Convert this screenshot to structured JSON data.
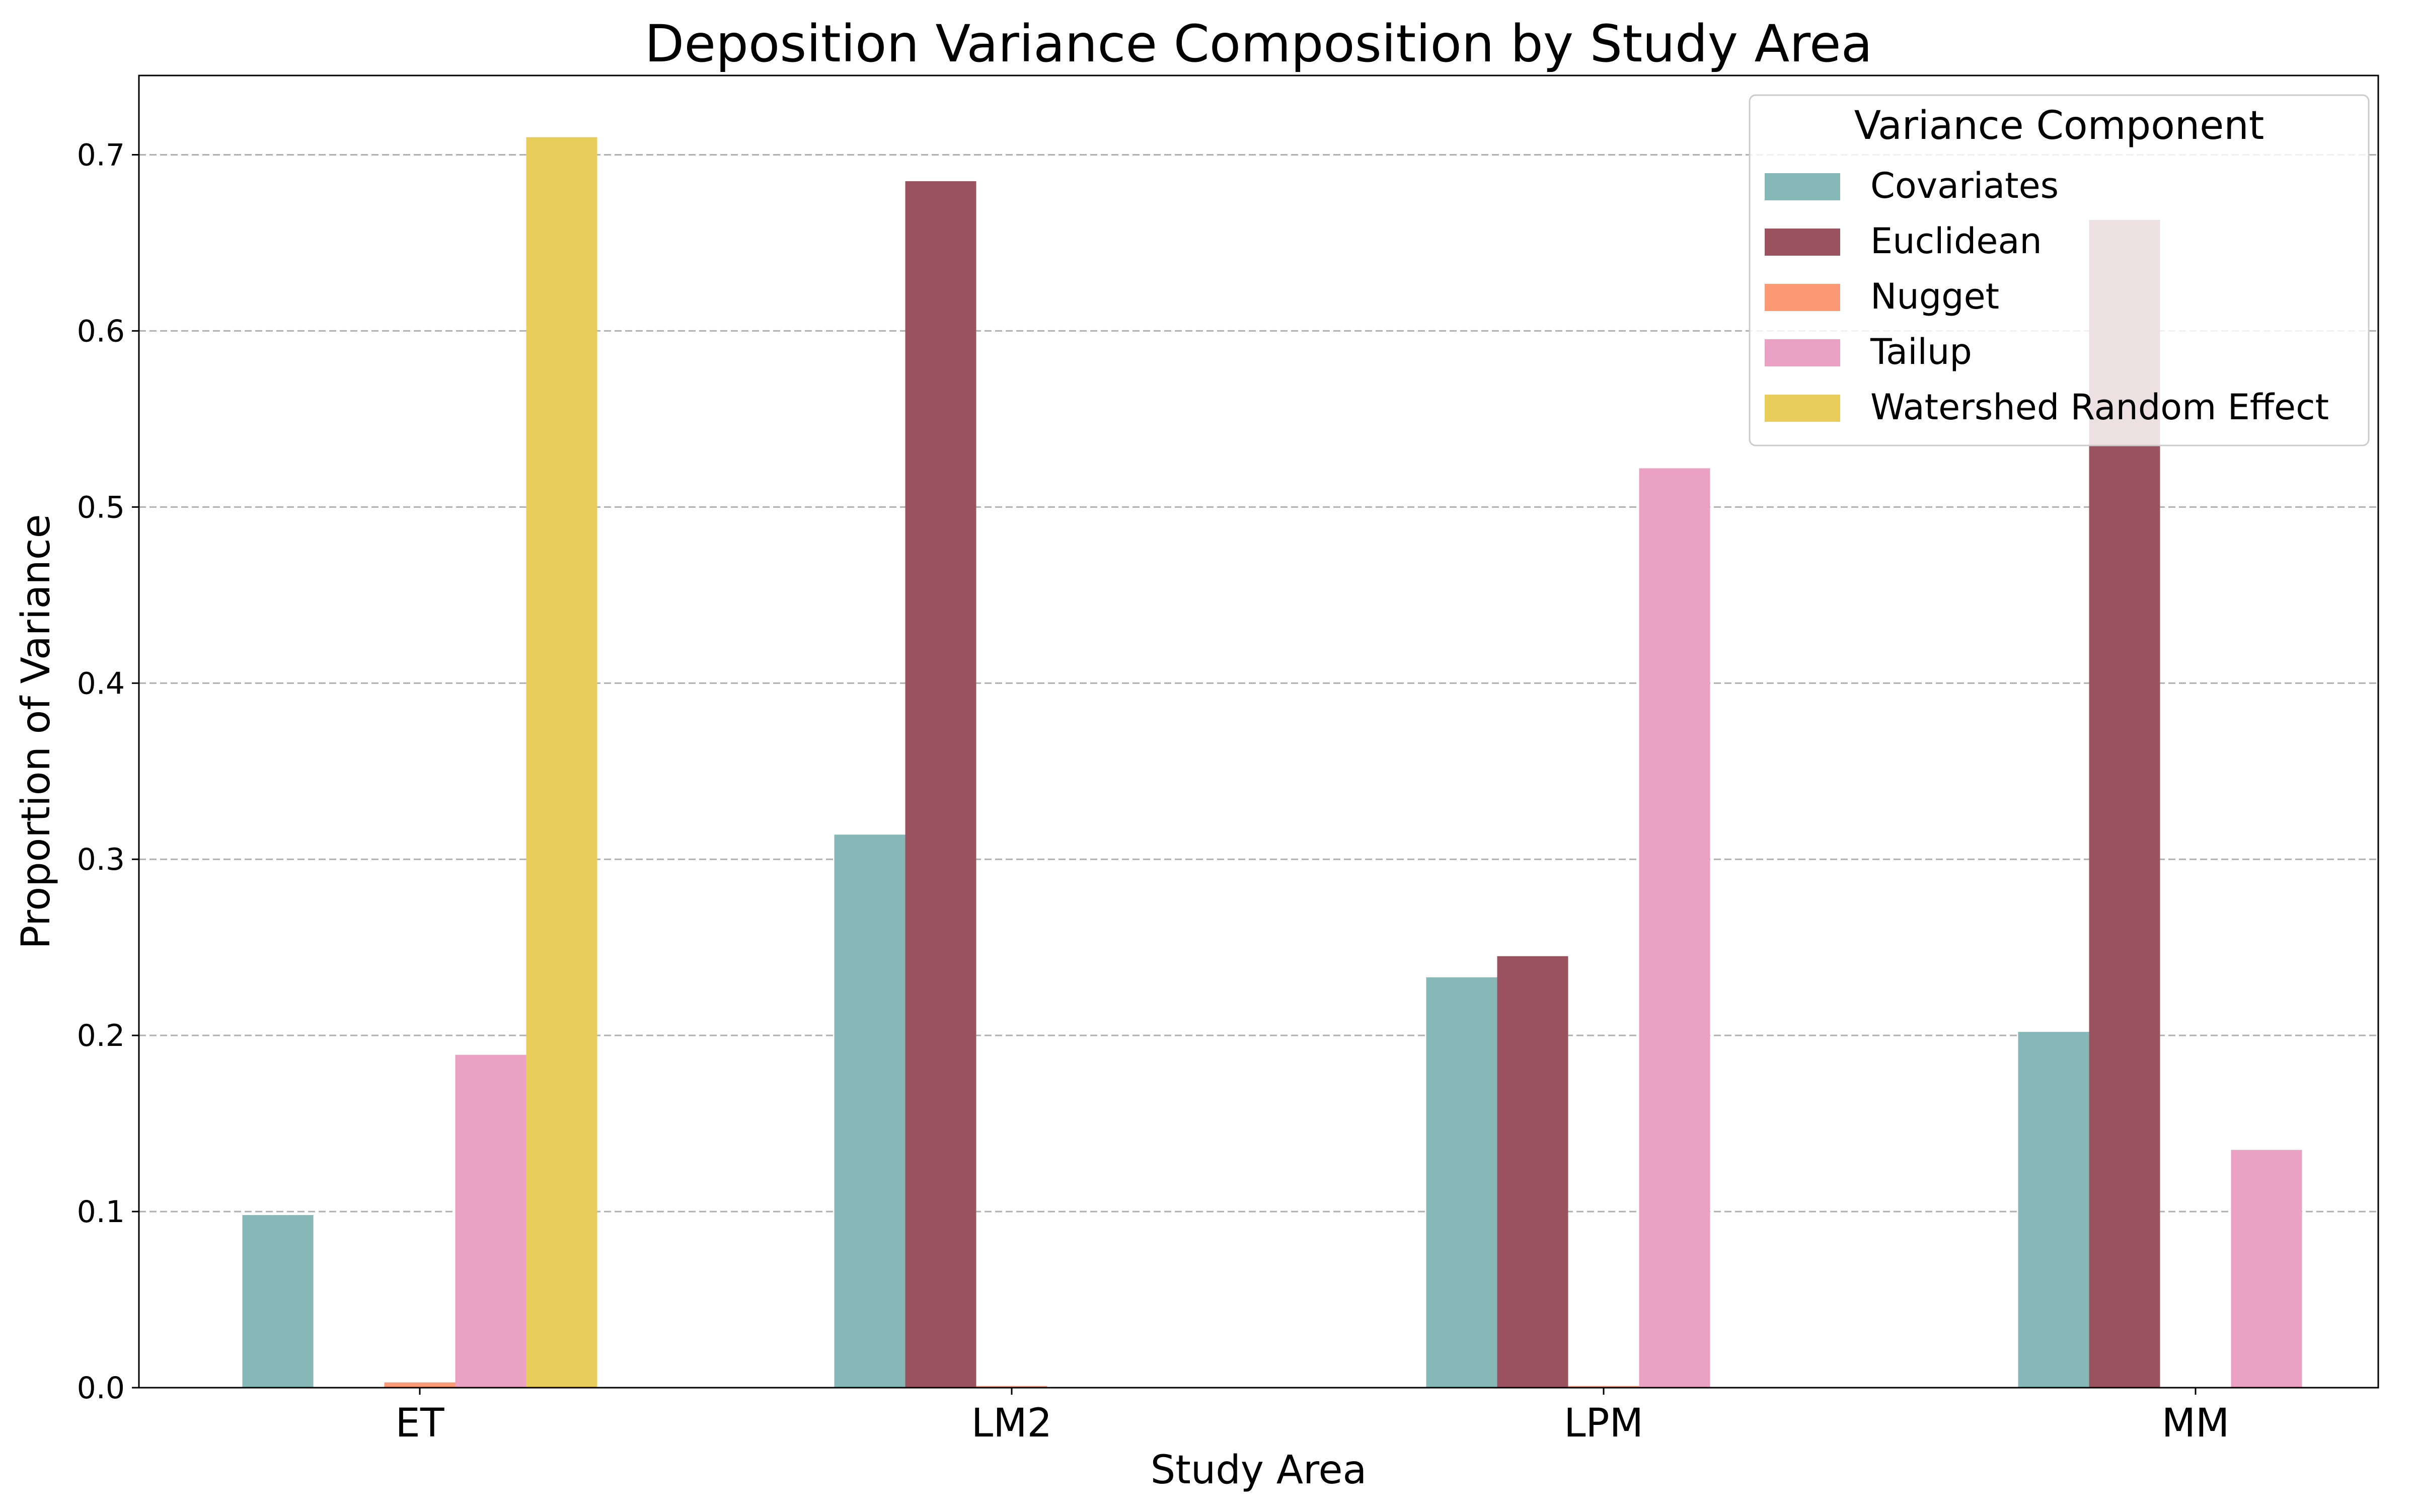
{
  "chart_data": {
    "type": "bar",
    "title": "Deposition Variance Composition by Study Area",
    "xlabel": "Study Area",
    "ylabel": "Proportion of Variance",
    "categories": [
      "ET",
      "LM2",
      "LPM",
      "MM"
    ],
    "series": [
      {
        "name": "Covariates",
        "color": "#86b8b8",
        "values": [
          0.098,
          0.314,
          0.233,
          0.202
        ]
      },
      {
        "name": "Euclidean",
        "color": "#9b545f",
        "values": [
          0.0,
          0.685,
          0.245,
          0.663
        ]
      },
      {
        "name": "Nugget",
        "color": "#fb9a75",
        "values": [
          0.003,
          0.001,
          0.001,
          0.0
        ]
      },
      {
        "name": "Tailup",
        "color": "#eaa1c4",
        "values": [
          0.189,
          0.0,
          0.522,
          0.135
        ]
      },
      {
        "name": "Watershed Random Effect",
        "color": "#e8cd5a",
        "values": [
          0.71,
          0.0,
          0.0,
          0.0
        ]
      }
    ],
    "ylim": [
      0,
      0.745
    ],
    "yticks": [
      0.0,
      0.1,
      0.2,
      0.3,
      0.4,
      0.5,
      0.6,
      0.7
    ],
    "ytick_labels": [
      "0.0",
      "0.1",
      "0.2",
      "0.3",
      "0.4",
      "0.5",
      "0.6",
      "0.7"
    ],
    "grid": "y-dashed",
    "legend": {
      "title": "Variance Component",
      "position": "top-right"
    }
  }
}
